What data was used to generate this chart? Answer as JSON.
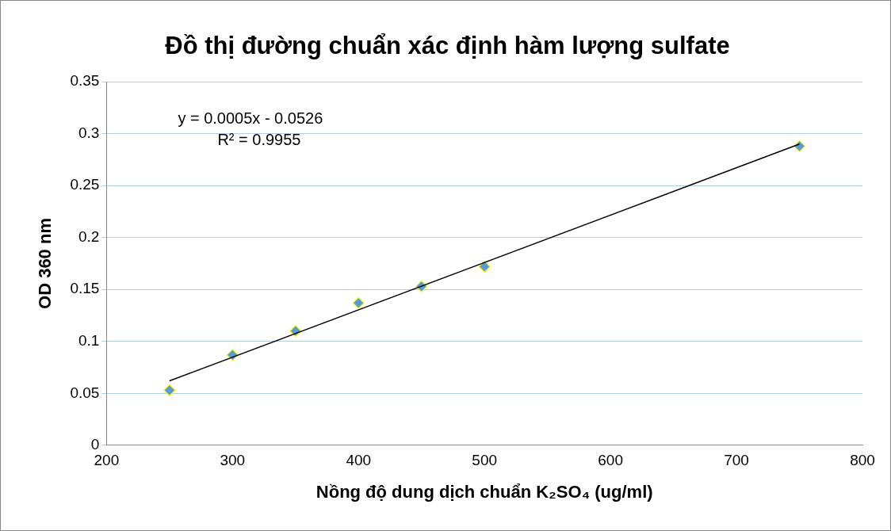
{
  "chart_data": {
    "type": "scatter",
    "title": "Đồ thị đường chuẩn xác định hàm lượng sulfate",
    "xlabel": "Nồng độ dung dịch chuẩn K₂SO₄ (ug/ml)",
    "ylabel": "OD 360 nm",
    "x": [
      250,
      300,
      350,
      400,
      450,
      500,
      750
    ],
    "series": [
      {
        "color": "#5b9bd5",
        "values": [
          0.053,
          0.087,
          0.11,
          0.137,
          0.153,
          0.172,
          0.288
        ],
        "marker": "diamond"
      },
      {
        "type": "line",
        "color": "#000000",
        "x": [
          250,
          750
        ],
        "values": [
          0.062,
          0.29
        ],
        "marker": "none"
      }
    ],
    "xlim": [
      200,
      800
    ],
    "xticks": [
      200,
      300,
      400,
      500,
      600,
      700,
      800
    ],
    "ylim": [
      0,
      0.35
    ],
    "yticks": [
      0,
      0.05,
      0.1,
      0.15,
      0.2,
      0.25,
      0.3,
      0.35
    ],
    "grid": "y",
    "legend": false,
    "annotations": [
      "y = 0.0005x - 0.0526",
      "R² = 0.9955"
    ]
  }
}
